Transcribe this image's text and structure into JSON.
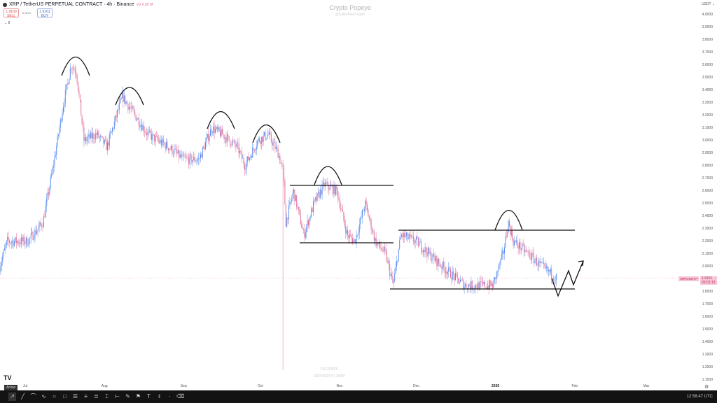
{
  "header": {
    "symbol": "XRP / TetherUS PERPETUAL CONTRACT · 4h · Binance",
    "volume": "Vol 6.05 M",
    "sell_price": "1.9100",
    "sell_label": "SELL",
    "spread": "0.0001",
    "buy_price": "1.9101",
    "buy_label": "BUY",
    "indicators_toggle": "⌄ 8"
  },
  "watermark": {
    "title": "Crypto Popeye",
    "handle": "@SailorManCrypto",
    "date": "23/12/2025",
    "symbol": "XRPUSDT.P | 240M"
  },
  "price_axis": {
    "currency": "USDT ⌄",
    "labels": [
      "4.0000",
      "3.9000",
      "3.8000",
      "3.7000",
      "3.6000",
      "3.5000",
      "3.4000",
      "3.3000",
      "3.2000",
      "3.1000",
      "3.0000",
      "2.9000",
      "2.8000",
      "2.7000",
      "2.6000",
      "2.5000",
      "2.4000",
      "2.3000",
      "2.2000",
      "2.1000",
      "2.0000",
      "1.8000",
      "1.7000",
      "1.6000",
      "1.5000",
      "1.4000",
      "1.3000",
      "1.2000",
      "1.1000"
    ],
    "current_price": "1.9101",
    "countdown": "03:01:13",
    "symbol_tag": "XRPUSDT.P"
  },
  "time_axis": {
    "labels": [
      {
        "t": "Jul",
        "d": "2025-07-01"
      },
      {
        "t": "Aug",
        "d": "2025-08-01"
      },
      {
        "t": "Sep",
        "d": "2025-09-01"
      },
      {
        "t": "Oct",
        "d": "2025-10-01"
      },
      {
        "t": "Nov",
        "d": "2025-11-01"
      },
      {
        "t": "Dec",
        "d": "2025-12-01"
      },
      {
        "t": "2026",
        "d": "2026-01-01",
        "bold": true
      },
      {
        "t": "Feb",
        "d": "2026-02-01"
      },
      {
        "t": "Mar",
        "d": "2026-03-01"
      }
    ]
  },
  "toolbar": {
    "active_tool": "Arrow",
    "clock": "12:58:47 UTC",
    "tools": [
      "arrow",
      "trend-line",
      "curve",
      "path",
      "circle",
      "rectangle",
      "fib",
      "parallel",
      "text-lines",
      "range",
      "date-range",
      "brush",
      "pin",
      "text",
      "signature",
      "cursor",
      "eraser"
    ]
  },
  "colors": {
    "up": "#5b8def",
    "down": "#e0709a",
    "drawing": "#111111"
  },
  "chart_data": {
    "type": "candlestick",
    "timeframe": "4h",
    "ylim": [
      1.1,
      4.0
    ],
    "price_path": [
      [
        "2025-06-21",
        2.0
      ],
      [
        "2025-06-24",
        2.2
      ],
      [
        "2025-07-02",
        2.2
      ],
      [
        "2025-07-08",
        2.35
      ],
      [
        "2025-07-12",
        2.8
      ],
      [
        "2025-07-16",
        3.3
      ],
      [
        "2025-07-19",
        3.6
      ],
      [
        "2025-07-21",
        3.55
      ],
      [
        "2025-07-24",
        3.0
      ],
      [
        "2025-07-29",
        3.05
      ],
      [
        "2025-08-02",
        2.95
      ],
      [
        "2025-08-08",
        3.35
      ],
      [
        "2025-08-13",
        3.2
      ],
      [
        "2025-08-18",
        3.05
      ],
      [
        "2025-08-26",
        2.95
      ],
      [
        "2025-09-01",
        2.85
      ],
      [
        "2025-09-07",
        2.85
      ],
      [
        "2025-09-12",
        3.1
      ],
      [
        "2025-09-16",
        3.05
      ],
      [
        "2025-09-22",
        2.95
      ],
      [
        "2025-09-25",
        2.8
      ],
      [
        "2025-09-30",
        3.0
      ],
      [
        "2025-10-04",
        3.05
      ],
      [
        "2025-10-08",
        2.9
      ],
      [
        "2025-10-10",
        2.75
      ],
      [
        "2025-10-11",
        2.35
      ],
      [
        "2025-10-14",
        2.6
      ],
      [
        "2025-10-18",
        2.25
      ],
      [
        "2025-10-22",
        2.5
      ],
      [
        "2025-10-26",
        2.65
      ],
      [
        "2025-10-31",
        2.6
      ],
      [
        "2025-11-04",
        2.25
      ],
      [
        "2025-11-07",
        2.2
      ],
      [
        "2025-11-11",
        2.5
      ],
      [
        "2025-11-15",
        2.2
      ],
      [
        "2025-11-19",
        2.1
      ],
      [
        "2025-11-22",
        1.85
      ],
      [
        "2025-11-25",
        2.25
      ],
      [
        "2025-12-01",
        2.2
      ],
      [
        "2025-12-06",
        2.1
      ],
      [
        "2025-12-14",
        1.95
      ],
      [
        "2025-12-20",
        1.85
      ],
      [
        "2025-12-31",
        1.85
      ],
      [
        "2026-01-04",
        2.1
      ],
      [
        "2026-01-06",
        2.35
      ],
      [
        "2026-01-08",
        2.2
      ],
      [
        "2026-01-14",
        2.1
      ],
      [
        "2026-01-19",
        2.0
      ],
      [
        "2026-01-25",
        1.91
      ]
    ],
    "spike_low": [
      "2025-10-10",
      1.18
    ]
  }
}
